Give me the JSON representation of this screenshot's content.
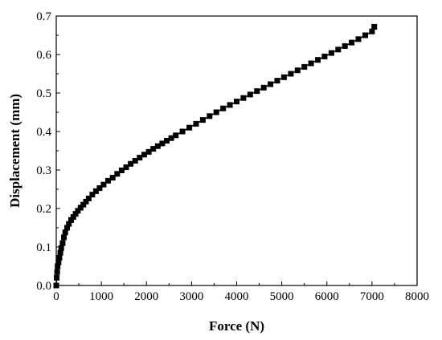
{
  "chart_data": {
    "type": "scatter",
    "title": "",
    "xlabel": "Force (N)",
    "ylabel": "Displacement (mm)",
    "xlim": [
      0,
      8000
    ],
    "ylim": [
      0.0,
      0.7
    ],
    "x_ticks": [
      "0",
      "1000",
      "2000",
      "3000",
      "4000",
      "5000",
      "6000",
      "7000",
      "8000"
    ],
    "y_ticks": [
      "0.0",
      "0.1",
      "0.2",
      "0.3",
      "0.4",
      "0.5",
      "0.6",
      "0.7"
    ],
    "grid": false,
    "legend": "none",
    "marker": "filled-square",
    "colors": {
      "marker": "#000000",
      "line": "#000000",
      "axis": "#000000"
    },
    "series": [
      {
        "points": [
          [
            0,
            0.0
          ],
          [
            10,
            0.02
          ],
          [
            20,
            0.035
          ],
          [
            30,
            0.05
          ],
          [
            50,
            0.06
          ],
          [
            70,
            0.072
          ],
          [
            90,
            0.085
          ],
          [
            110,
            0.097
          ],
          [
            140,
            0.11
          ],
          [
            170,
            0.125
          ],
          [
            200,
            0.138
          ],
          [
            240,
            0.15
          ],
          [
            280,
            0.16
          ],
          [
            330,
            0.17
          ],
          [
            380,
            0.178
          ],
          [
            430,
            0.186
          ],
          [
            480,
            0.194
          ],
          [
            540,
            0.202
          ],
          [
            600,
            0.21
          ],
          [
            660,
            0.218
          ],
          [
            720,
            0.226
          ],
          [
            800,
            0.236
          ],
          [
            880,
            0.245
          ],
          [
            960,
            0.253
          ],
          [
            1050,
            0.262
          ],
          [
            1150,
            0.272
          ],
          [
            1250,
            0.28
          ],
          [
            1350,
            0.29
          ],
          [
            1450,
            0.299
          ],
          [
            1550,
            0.307
          ],
          [
            1650,
            0.316
          ],
          [
            1750,
            0.324
          ],
          [
            1850,
            0.332
          ],
          [
            1950,
            0.34
          ],
          [
            2050,
            0.347
          ],
          [
            2150,
            0.355
          ],
          [
            2250,
            0.362
          ],
          [
            2350,
            0.369
          ],
          [
            2450,
            0.376
          ],
          [
            2550,
            0.383
          ],
          [
            2650,
            0.39
          ],
          [
            2800,
            0.4
          ],
          [
            2950,
            0.41
          ],
          [
            3100,
            0.42
          ],
          [
            3250,
            0.43
          ],
          [
            3400,
            0.44
          ],
          [
            3550,
            0.45
          ],
          [
            3700,
            0.46
          ],
          [
            3850,
            0.469
          ],
          [
            4000,
            0.478
          ],
          [
            4150,
            0.487
          ],
          [
            4300,
            0.496
          ],
          [
            4450,
            0.505
          ],
          [
            4600,
            0.514
          ],
          [
            4750,
            0.523
          ],
          [
            4900,
            0.532
          ],
          [
            5050,
            0.541
          ],
          [
            5200,
            0.55
          ],
          [
            5350,
            0.559
          ],
          [
            5500,
            0.568
          ],
          [
            5650,
            0.577
          ],
          [
            5800,
            0.586
          ],
          [
            5950,
            0.595
          ],
          [
            6100,
            0.604
          ],
          [
            6250,
            0.613
          ],
          [
            6400,
            0.622
          ],
          [
            6550,
            0.631
          ],
          [
            6700,
            0.64
          ],
          [
            6850,
            0.65
          ],
          [
            7000,
            0.66
          ],
          [
            7050,
            0.672
          ]
        ]
      }
    ]
  }
}
